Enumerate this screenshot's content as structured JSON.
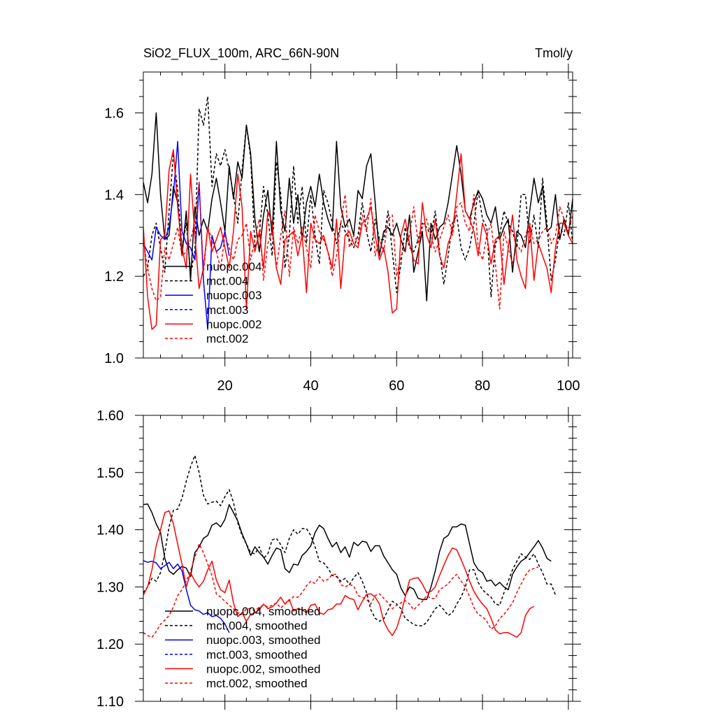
{
  "chart_data": [
    {
      "type": "line",
      "title": "SiO2_FLUX_100m, ARC_66N-90N",
      "units": "Tmol/y",
      "xlim": [
        1,
        101
      ],
      "ylim": [
        1.0,
        1.7
      ],
      "xticks": [
        20,
        40,
        60,
        80,
        100
      ],
      "yticks": [
        1.0,
        1.2,
        1.4,
        1.6
      ],
      "ytick_labels": [
        "1.0",
        "1.2",
        "1.4",
        "1.6"
      ],
      "legend_position": "lower-left",
      "series": [
        {
          "name": "nuopc.004",
          "color": "#000000",
          "dash": "solid",
          "x_start": 1,
          "values": [
            1.43,
            1.38,
            1.45,
            1.6,
            1.4,
            1.29,
            1.3,
            1.42,
            1.38,
            1.25,
            1.36,
            1.19,
            1.37,
            1.3,
            1.34,
            1.31,
            1.39,
            1.44,
            1.38,
            1.31,
            1.47,
            1.39,
            1.48,
            1.44,
            1.57,
            1.5,
            1.34,
            1.26,
            1.35,
            1.41,
            1.3,
            1.53,
            1.36,
            1.31,
            1.44,
            1.33,
            1.4,
            1.29,
            1.38,
            1.42,
            1.37,
            1.45,
            1.38,
            1.34,
            1.31,
            1.53,
            1.37,
            1.32,
            1.34,
            1.3,
            1.41,
            1.39,
            1.47,
            1.5,
            1.38,
            1.25,
            1.31,
            1.32,
            1.3,
            1.33,
            1.29,
            1.26,
            1.35,
            1.21,
            1.26,
            1.31,
            1.14,
            1.33,
            1.29,
            1.32,
            1.33,
            1.38,
            1.45,
            1.52,
            1.45,
            1.36,
            1.34,
            1.38,
            1.41,
            1.39,
            1.35,
            1.33,
            1.37,
            1.29,
            1.32,
            1.34,
            1.21,
            1.31,
            1.3,
            1.27,
            1.36,
            1.44,
            1.38,
            1.42,
            1.31,
            1.32,
            1.4,
            1.29,
            1.34,
            1.3,
            1.39
          ]
        },
        {
          "name": "mct.004",
          "color": "#000000",
          "dash": "dashed",
          "x_start": 1,
          "values": [
            1.2,
            1.22,
            1.3,
            1.33,
            1.27,
            1.21,
            1.36,
            1.5,
            1.41,
            1.27,
            1.33,
            1.21,
            1.26,
            1.61,
            1.57,
            1.64,
            1.42,
            1.5,
            1.47,
            1.51,
            1.46,
            1.4,
            1.33,
            1.46,
            1.57,
            1.49,
            1.27,
            1.3,
            1.42,
            1.35,
            1.25,
            1.48,
            1.4,
            1.22,
            1.3,
            1.47,
            1.33,
            1.42,
            1.28,
            1.4,
            1.3,
            1.23,
            1.41,
            1.38,
            1.33,
            1.28,
            1.33,
            1.31,
            1.29,
            1.27,
            1.3,
            1.38,
            1.31,
            1.26,
            1.34,
            1.29,
            1.29,
            1.36,
            1.26,
            1.16,
            1.23,
            1.32,
            1.27,
            1.26,
            1.29,
            1.33,
            1.32,
            1.3,
            1.36,
            1.26,
            1.18,
            1.25,
            1.33,
            1.35,
            1.27,
            1.24,
            1.27,
            1.33,
            1.41,
            1.34,
            1.32,
            1.15,
            1.28,
            1.3,
            1.36,
            1.33,
            1.31,
            1.27,
            1.4,
            1.4,
            1.28,
            1.35,
            1.27,
            1.44,
            1.33,
            1.19,
            1.24,
            1.32,
            1.3,
            1.38,
            1.28
          ]
        },
        {
          "name": "nuopc.003",
          "color": "#0000ff",
          "dash": "solid",
          "x_start": 1,
          "values": [
            1.28,
            1.26,
            1.24,
            1.32,
            1.3,
            1.29,
            1.32,
            1.4,
            1.53,
            1.31,
            1.28,
            1.27,
            1.24,
            1.43,
            1.19,
            1.07,
            1.3,
            1.26,
            1.27,
            1.31,
            1.25
          ]
        },
        {
          "name": "mct.003",
          "color": "#0000ff",
          "dash": "dashed",
          "x_start": 1,
          "values": []
        },
        {
          "name": "nuopc.002",
          "color": "#ff0000",
          "dash": "solid",
          "x_start": 1,
          "values": [
            1.32,
            1.15,
            1.07,
            1.08,
            1.29,
            1.3,
            1.46,
            1.51,
            1.37,
            1.27,
            1.22,
            1.45,
            1.3,
            1.17,
            1.22,
            1.32,
            1.26,
            1.29,
            1.32,
            1.27,
            1.22,
            1.31,
            1.45,
            1.37,
            1.12,
            1.31,
            1.26,
            1.31,
            1.22,
            1.36,
            1.33,
            1.22,
            1.18,
            1.29,
            1.3,
            1.31,
            1.25,
            1.3,
            1.16,
            1.33,
            1.29,
            1.28,
            1.3,
            1.26,
            1.22,
            1.34,
            1.17,
            1.3,
            1.31,
            1.28,
            1.27,
            1.33,
            1.34,
            1.37,
            1.3,
            1.24,
            1.27,
            1.21,
            1.11,
            1.12,
            1.3,
            1.34,
            1.28,
            1.24,
            1.23,
            1.38,
            1.3,
            1.27,
            1.34,
            1.25,
            1.22,
            1.28,
            1.31,
            1.4,
            1.5,
            1.36,
            1.34,
            1.31,
            1.25,
            1.33,
            1.3,
            1.23,
            1.29,
            1.3,
            1.18,
            1.27,
            1.35,
            1.24,
            1.2,
            1.17,
            1.33,
            1.19,
            1.28,
            1.25,
            1.22,
            1.16,
            1.27,
            1.33,
            1.33,
            1.3,
            1.28
          ]
        },
        {
          "name": "mct.002",
          "color": "#ff0000",
          "dash": "dashed",
          "x_start": 1,
          "values": [
            1.29,
            1.22,
            1.17,
            1.14,
            1.15,
            1.27,
            1.24,
            1.28,
            1.32,
            1.25,
            1.26,
            1.29,
            1.33,
            1.43,
            1.21,
            1.32,
            1.29,
            1.26,
            1.22,
            1.3,
            1.27,
            1.24,
            1.29,
            1.3,
            1.33,
            1.24,
            1.29,
            1.34,
            1.19,
            1.28,
            1.31,
            1.22,
            1.3,
            1.36,
            1.2,
            1.32,
            1.28,
            1.32,
            1.27,
            1.22,
            1.35,
            1.31,
            1.29,
            1.26,
            1.2,
            1.25,
            1.33,
            1.4,
            1.27,
            1.3,
            1.28,
            1.35,
            1.31,
            1.39,
            1.25,
            1.29,
            1.26,
            1.34,
            1.35,
            1.2,
            1.25,
            1.27,
            1.3,
            1.37,
            1.28,
            1.32,
            1.34,
            1.3,
            1.26,
            1.29,
            1.32,
            1.35,
            1.3,
            1.37,
            1.38,
            1.33,
            1.31,
            1.4,
            1.27,
            1.24,
            1.3,
            1.33,
            1.23,
            1.12,
            1.31,
            1.27,
            1.23,
            1.28,
            1.26,
            1.3,
            1.33,
            1.28,
            1.29,
            1.31,
            1.32,
            1.28,
            1.3,
            1.37,
            1.34,
            1.31,
            1.35
          ]
        }
      ]
    },
    {
      "type": "line",
      "title": "",
      "xlim": [
        1,
        101
      ],
      "ylim": [
        1.1,
        1.6
      ],
      "xticks": [
        20,
        40,
        60,
        80,
        100
      ],
      "yticks": [
        1.1,
        1.2,
        1.3,
        1.4,
        1.5,
        1.6
      ],
      "ytick_labels": [
        "1.10",
        "1.20",
        "1.30",
        "1.40",
        "1.50",
        "1.60"
      ],
      "legend_position": "lower-left",
      "series": [
        {
          "name": "nuopc.004, smoothed",
          "color": "#000000",
          "dash": "solid",
          "x_start": 1,
          "values": [
            1.444,
            1.445,
            1.43,
            1.41,
            1.395,
            1.35,
            1.328,
            1.322,
            1.33,
            1.336,
            1.333,
            1.318,
            1.36,
            1.37,
            1.385,
            1.39,
            1.408,
            1.412,
            1.405,
            1.418,
            1.444,
            1.43,
            1.415,
            1.393,
            1.375,
            1.355,
            1.37,
            1.36,
            1.352,
            1.34,
            1.355,
            1.368,
            1.365,
            1.332,
            1.325,
            1.34,
            1.338,
            1.355,
            1.362,
            1.372,
            1.395,
            1.408,
            1.402,
            1.385,
            1.37,
            1.378,
            1.36,
            1.37,
            1.352,
            1.378,
            1.372,
            1.38,
            1.378,
            1.362,
            1.372,
            1.372,
            1.354,
            1.342,
            1.33,
            1.322,
            1.298,
            1.285,
            1.3,
            1.296,
            1.28,
            1.278,
            1.278,
            1.3,
            1.328,
            1.362,
            1.385,
            1.39,
            1.405,
            1.405,
            1.41,
            1.408,
            1.375,
            1.342,
            1.33,
            1.325,
            1.31,
            1.312,
            1.302,
            1.308,
            1.3,
            1.295,
            1.322,
            1.335,
            1.345,
            1.35,
            1.36,
            1.37,
            1.381,
            1.368,
            1.35,
            1.345
          ]
        },
        {
          "name": "mct.004, smoothed",
          "color": "#000000",
          "dash": "dashed",
          "x_start": 1,
          "values": [
            1.29,
            1.3,
            1.315,
            1.31,
            1.325,
            1.36,
            1.405,
            1.434,
            1.436,
            1.455,
            1.485,
            1.51,
            1.53,
            1.5,
            1.46,
            1.445,
            1.448,
            1.45,
            1.442,
            1.458,
            1.47,
            1.448,
            1.412,
            1.39,
            1.375,
            1.36,
            1.358,
            1.37,
            1.35,
            1.358,
            1.382,
            1.385,
            1.374,
            1.36,
            1.385,
            1.4,
            1.392,
            1.402,
            1.402,
            1.39,
            1.37,
            1.345,
            1.342,
            1.333,
            1.32,
            1.318,
            1.31,
            1.315,
            1.304,
            1.316,
            1.325,
            1.31,
            1.29,
            1.26,
            1.245,
            1.24,
            1.244,
            1.26,
            1.275,
            1.27,
            1.262,
            1.245,
            1.24,
            1.234,
            1.232,
            1.232,
            1.238,
            1.25,
            1.262,
            1.268,
            1.26,
            1.25,
            1.255,
            1.27,
            1.282,
            1.3,
            1.33,
            1.33,
            1.308,
            1.295,
            1.288,
            1.282,
            1.27,
            1.268,
            1.29,
            1.31,
            1.33,
            1.345,
            1.358,
            1.352,
            1.348,
            1.358,
            1.34,
            1.325,
            1.305,
            1.305,
            1.286
          ]
        },
        {
          "name": "nuopc.003, smoothed",
          "color": "#0000ff",
          "dash": "solid",
          "x_start": 1,
          "values": [
            1.346,
            1.343,
            1.345,
            1.342,
            1.332,
            1.337,
            1.343,
            1.332,
            1.34,
            1.328,
            1.296,
            1.268,
            1.26,
            1.258,
            1.252,
            1.255,
            1.248,
            1.25,
            1.245,
            1.235,
            1.22
          ]
        },
        {
          "name": "mct.003, smoothed",
          "color": "#0000ff",
          "dash": "dashed",
          "x_start": 1,
          "values": []
        },
        {
          "name": "nuopc.002, smoothed",
          "color": "#ff0000",
          "dash": "solid",
          "x_start": 1,
          "values": [
            1.286,
            1.3,
            1.33,
            1.372,
            1.4,
            1.43,
            1.433,
            1.41,
            1.375,
            1.34,
            1.3,
            1.325,
            1.31,
            1.3,
            1.31,
            1.33,
            1.345,
            1.312,
            1.295,
            1.29,
            1.312,
            1.272,
            1.248,
            1.255,
            1.24,
            1.252,
            1.255,
            1.26,
            1.27,
            1.262,
            1.265,
            1.272,
            1.282,
            1.27,
            1.278,
            1.258,
            1.262,
            1.26,
            1.255,
            1.268,
            1.27,
            1.255,
            1.252,
            1.26,
            1.262,
            1.27,
            1.27,
            1.285,
            1.28,
            1.278,
            1.26,
            1.275,
            1.287,
            1.288,
            1.282,
            1.27,
            1.24,
            1.225,
            1.215,
            1.228,
            1.252,
            1.282,
            1.312,
            1.315,
            1.316,
            1.305,
            1.29,
            1.292,
            1.3,
            1.32,
            1.338,
            1.355,
            1.368,
            1.365,
            1.348,
            1.33,
            1.31,
            1.292,
            1.28,
            1.27,
            1.262,
            1.245,
            1.225,
            1.218,
            1.22,
            1.22,
            1.216,
            1.212,
            1.22,
            1.25,
            1.262,
            1.266
          ]
        },
        {
          "name": "mct.002, smoothed",
          "color": "#ff0000",
          "dash": "dashed",
          "x_start": 1,
          "values": [
            1.22,
            1.215,
            1.212,
            1.222,
            1.235,
            1.242,
            1.25,
            1.265,
            1.285,
            1.295,
            1.31,
            1.328,
            1.352,
            1.375,
            1.36,
            1.34,
            1.32,
            1.288,
            1.282,
            1.275,
            1.268,
            1.262,
            1.255,
            1.252,
            1.262,
            1.262,
            1.258,
            1.265,
            1.268,
            1.265,
            1.268,
            1.272,
            1.263,
            1.27,
            1.276,
            1.283,
            1.282,
            1.29,
            1.302,
            1.31,
            1.306,
            1.318,
            1.31,
            1.313,
            1.322,
            1.322,
            1.304,
            1.3,
            1.304,
            1.302,
            1.285,
            1.282,
            1.278,
            1.27,
            1.285,
            1.288,
            1.28,
            1.272,
            1.262,
            1.268,
            1.272,
            1.276,
            1.27,
            1.26,
            1.268,
            1.275,
            1.285,
            1.28,
            1.28,
            1.295,
            1.3,
            1.305,
            1.315,
            1.322,
            1.31,
            1.3,
            1.283,
            1.264,
            1.252,
            1.248,
            1.24,
            1.226,
            1.232,
            1.245,
            1.252,
            1.262,
            1.272,
            1.29,
            1.305,
            1.32,
            1.33,
            1.332,
            1.335
          ]
        }
      ]
    }
  ]
}
